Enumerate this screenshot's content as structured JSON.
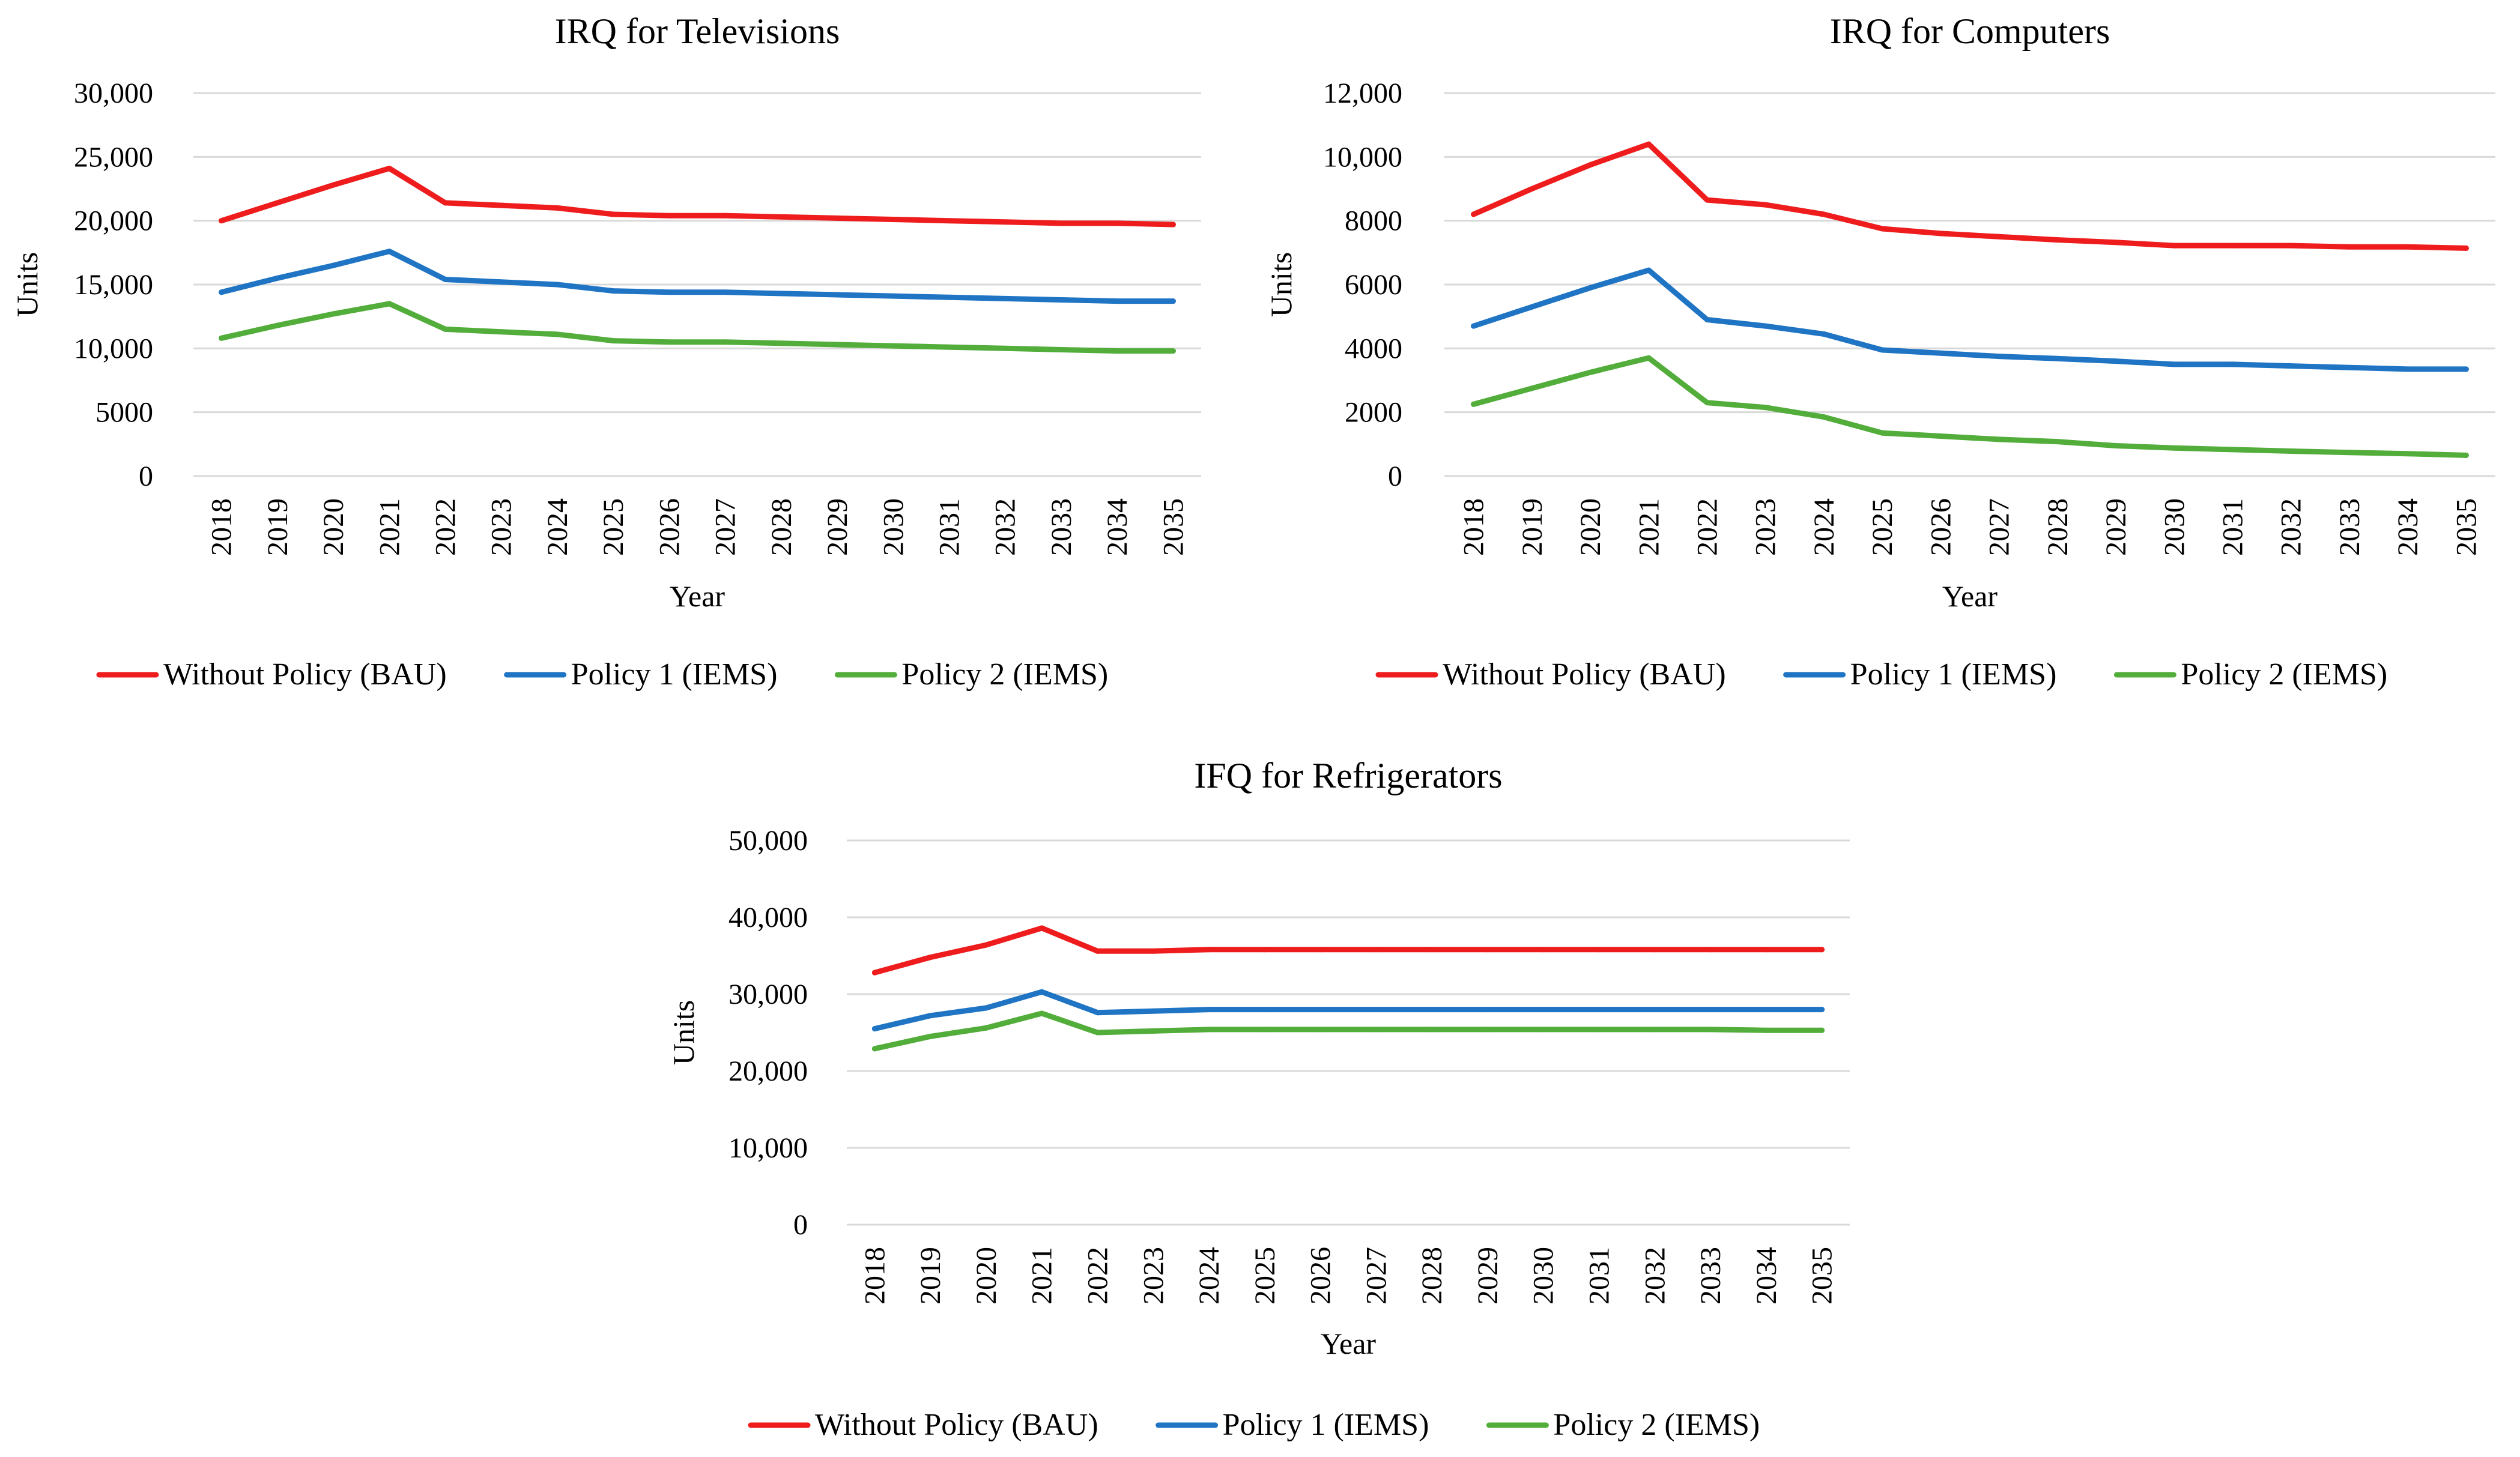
{
  "charts": [
    {
      "id": "tv",
      "chart_data": {
        "type": "line",
        "title": "IRQ  for Televisions",
        "xlabel": "Year",
        "ylabel": "Units",
        "ylim": [
          0,
          30000
        ],
        "yticks": [
          "0",
          "5000",
          "10,000",
          "15,000",
          "20,000",
          "25,000",
          "30,000"
        ],
        "ytick_values": [
          0,
          5000,
          10000,
          15000,
          20000,
          25000,
          30000
        ],
        "grid": true,
        "legend": "bottom",
        "x": [
          "2018",
          "2019",
          "2020",
          "2021",
          "2022",
          "2023",
          "2024",
          "2025",
          "2026",
          "2027",
          "2028",
          "2029",
          "2030",
          "2031",
          "2032",
          "2033",
          "2034",
          "2035"
        ],
        "series": [
          {
            "name": "Without Policy (BAU)",
            "color": "#ee1c1c",
            "values": [
              20000,
              21400,
              22800,
              24100,
              21400,
              21200,
              21000,
              20500,
              20400,
              20400,
              20300,
              20200,
              20100,
              20000,
              19900,
              19800,
              19800,
              19700
            ]
          },
          {
            "name": "Policy 1 (IEMS)",
            "color": "#1f74c4",
            "values": [
              14400,
              15500,
              16500,
              17600,
              15400,
              15200,
              15000,
              14500,
              14400,
              14400,
              14300,
              14200,
              14100,
              14000,
              13900,
              13800,
              13700,
              13700
            ]
          },
          {
            "name": "Policy 2 (IEMS)",
            "color": "#52ad3b",
            "values": [
              10800,
              11800,
              12700,
              13500,
              11500,
              11300,
              11100,
              10600,
              10500,
              10500,
              10400,
              10300,
              10200,
              10100,
              10000,
              9900,
              9800,
              9800
            ]
          }
        ]
      }
    },
    {
      "id": "pc",
      "chart_data": {
        "type": "line",
        "title": "IRQ  for Computers",
        "xlabel": "Year",
        "ylabel": "Units",
        "ylim": [
          0,
          12000
        ],
        "yticks": [
          "0",
          "2000",
          "4000",
          "6000",
          "8000",
          "10,000",
          "12,000"
        ],
        "ytick_values": [
          0,
          2000,
          4000,
          6000,
          8000,
          10000,
          12000
        ],
        "grid": true,
        "legend": "bottom",
        "x": [
          "2018",
          "2019",
          "2020",
          "2021",
          "2022",
          "2023",
          "2024",
          "2025",
          "2026",
          "2027",
          "2028",
          "2029",
          "2030",
          "2031",
          "2032",
          "2033",
          "2034",
          "2035"
        ],
        "series": [
          {
            "name": "Without Policy (BAU)",
            "color": "#ee1c1c",
            "values": [
              8200,
              9000,
              9750,
              10400,
              8650,
              8500,
              8200,
              7750,
              7600,
              7500,
              7400,
              7320,
              7220,
              7220,
              7220,
              7180,
              7180,
              7140
            ]
          },
          {
            "name": "Policy 1 (IEMS)",
            "color": "#1f74c4",
            "values": [
              4700,
              5300,
              5900,
              6450,
              4900,
              4700,
              4450,
              3950,
              3850,
              3750,
              3680,
              3600,
              3500,
              3500,
              3450,
              3400,
              3350,
              3350
            ]
          },
          {
            "name": "Policy 2 (IEMS)",
            "color": "#52ad3b",
            "values": [
              2250,
              2750,
              3250,
              3700,
              2300,
              2150,
              1850,
              1350,
              1250,
              1150,
              1080,
              950,
              880,
              830,
              780,
              740,
              700,
              650
            ]
          }
        ]
      }
    },
    {
      "id": "fridge",
      "chart_data": {
        "type": "line",
        "title": "IFQ for Refrigerators",
        "xlabel": "Year",
        "ylabel": "Units",
        "ylim": [
          0,
          50000
        ],
        "yticks": [
          "0",
          "10,000",
          "20,000",
          "30,000",
          "40,000",
          "50,000"
        ],
        "ytick_values": [
          0,
          10000,
          20000,
          30000,
          40000,
          50000
        ],
        "grid": true,
        "legend": "bottom",
        "x": [
          "2018",
          "2019",
          "2020",
          "2021",
          "2022",
          "2023",
          "2024",
          "2025",
          "2026",
          "2027",
          "2028",
          "2029",
          "2030",
          "2031",
          "2032",
          "2033",
          "2034",
          "2035"
        ],
        "series": [
          {
            "name": "Without Policy (BAU)",
            "color": "#ee1c1c",
            "values": [
              32800,
              34800,
              36400,
              38600,
              35600,
              35600,
              35800,
              35800,
              35800,
              35800,
              35800,
              35800,
              35800,
              35800,
              35800,
              35800,
              35800,
              35800
            ]
          },
          {
            "name": "Policy 1 (IEMS)",
            "color": "#1f74c4",
            "values": [
              25500,
              27200,
              28200,
              30300,
              27600,
              27800,
              28000,
              28000,
              28000,
              28000,
              28000,
              28000,
              28000,
              28000,
              28000,
              28000,
              28000,
              28000
            ]
          },
          {
            "name": "Policy 2 (IEMS)",
            "color": "#52ad3b",
            "values": [
              22900,
              24500,
              25600,
              27500,
              25000,
              25200,
              25400,
              25400,
              25400,
              25400,
              25400,
              25400,
              25400,
              25400,
              25400,
              25400,
              25300,
              25300
            ]
          }
        ]
      }
    }
  ]
}
